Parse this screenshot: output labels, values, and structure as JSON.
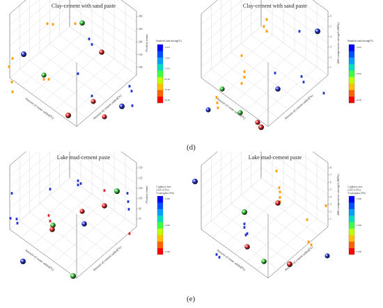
{
  "figure": {
    "label_d": "(d)",
    "label_e": "(e)"
  },
  "chart_data": [
    {
      "type": "scatter",
      "title": "Clay-cement with sand paste",
      "zlabel": "Fluidity (mm)",
      "xlabel": "Amount of cement added(%)",
      "ylabel": "Amount of water added(%)",
      "z_ticks": [
        "100",
        "150",
        "200",
        "250",
        "300"
      ],
      "legend_title": "Standard sand mixing(%)",
      "legend_ticks": [
        "150.0",
        "130.0",
        "110.0",
        "90.00",
        "70.00",
        "50.00"
      ]
    },
    {
      "type": "scatter",
      "title": "Clay-cement with sand paste",
      "zlabel": "28d compressive strength (MPa)",
      "xlabel": "Amount of cement added(%)",
      "ylabel": "Amount of water added(%)",
      "z_ticks": [
        "1",
        "2",
        "3",
        "4",
        "5",
        "6"
      ],
      "legend_title": "Standard sand mixing(%)",
      "legend_ticks": [
        "150.0",
        "100.0",
        "50.00"
      ]
    },
    {
      "type": "scatter",
      "title": "Lake mud-cement paste",
      "zlabel": "Fluidity (mm)",
      "xlabel": "Amount of cement added(%)",
      "ylabel": "Amount of water added(%)",
      "z_ticks": [
        "75",
        "90",
        "105",
        "120",
        "135",
        "150"
      ],
      "legend_title_lines": [
        "1-additive-free",
        "2-HY-4 (5%)",
        "3-waterglass (5%)"
      ],
      "legend_ticks": [
        "3.000",
        "2.000",
        "1.000"
      ]
    },
    {
      "type": "scatter",
      "title": "Lake mud-cement paste",
      "zlabel": "28d compressive strength (MPa)",
      "xlabel": "Amount of cement added(%)",
      "ylabel": "Amount of water added(%)",
      "z_ticks": [
        "1",
        "2",
        "3",
        "4",
        "5",
        "6",
        "7",
        "8"
      ],
      "legend_title_lines": [
        "1-additive-free",
        "2-HY-4 (5%)",
        "3-waterglass (5%)"
      ],
      "legend_ticks": [
        "3.000",
        "2.000",
        "1.000"
      ]
    }
  ]
}
